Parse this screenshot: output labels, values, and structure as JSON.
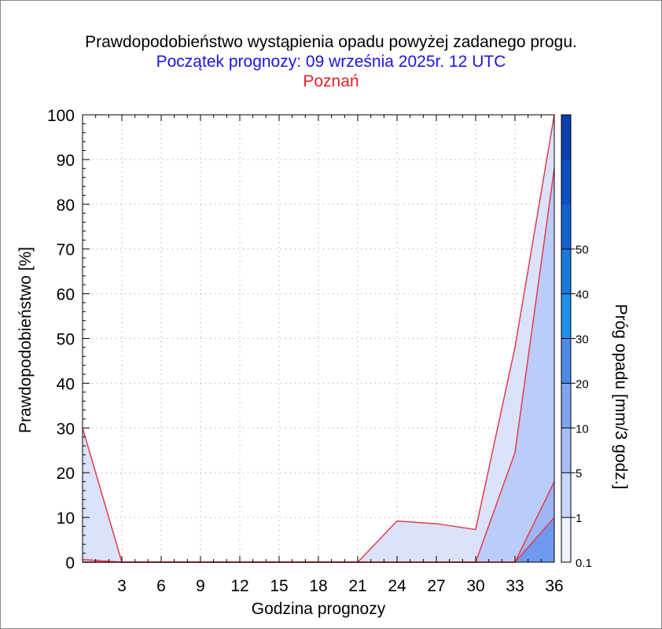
{
  "chart_data": {
    "type": "area",
    "title": "Prawdopodobieństwo wystąpienia opadu powyżej zadanego progu.",
    "subtitle": "Początek prognozy: 09 września 2025r. 12 UTC",
    "location": "Poznań",
    "xlabel": "Godzina prognozy",
    "ylabel": "Prawdopodobieństwo [%]",
    "xlim": [
      0,
      36
    ],
    "ylim": [
      0,
      100
    ],
    "xticks": [
      3,
      6,
      9,
      12,
      15,
      18,
      21,
      24,
      27,
      30,
      33,
      36
    ],
    "yticks": [
      0,
      10,
      20,
      30,
      40,
      50,
      60,
      70,
      80,
      90,
      100
    ],
    "grid": true,
    "x": [
      0,
      3,
      6,
      9,
      12,
      15,
      18,
      21,
      24,
      27,
      30,
      33,
      36
    ],
    "series": [
      {
        "name": "0.1",
        "color": "#dbe3fb",
        "values": [
          30,
          0,
          0,
          0,
          0,
          0,
          0,
          0,
          9.2,
          8.6,
          7.3,
          48,
          100
        ]
      },
      {
        "name": "1",
        "color": "#bcccf8",
        "values": [
          0.6,
          0,
          0,
          0,
          0,
          0,
          0,
          0,
          0,
          0,
          0,
          24.5,
          88
        ]
      },
      {
        "name": "5",
        "color": "#9db6f5",
        "values": [
          0,
          0,
          0,
          0,
          0,
          0,
          0,
          0,
          0,
          0,
          0,
          0,
          18
        ]
      },
      {
        "name": "10",
        "color": "#6f99ee",
        "values": [
          0,
          0,
          0,
          0,
          0,
          0,
          0,
          0,
          0,
          0,
          0,
          0,
          10
        ]
      }
    ],
    "colorbar": {
      "label": "Próg opadu [mm/3 godz.]",
      "tick_labels": [
        "0.1",
        "1",
        "5",
        "10",
        "20",
        "30",
        "40",
        "50"
      ],
      "colors": [
        "#eef2fd",
        "#c9d7fa",
        "#a6bff6",
        "#7ea5f0",
        "#4d8be9",
        "#1e8fec",
        "#1978dc",
        "#1363cf",
        "#0d4fbf",
        "#0a3faf"
      ]
    }
  }
}
